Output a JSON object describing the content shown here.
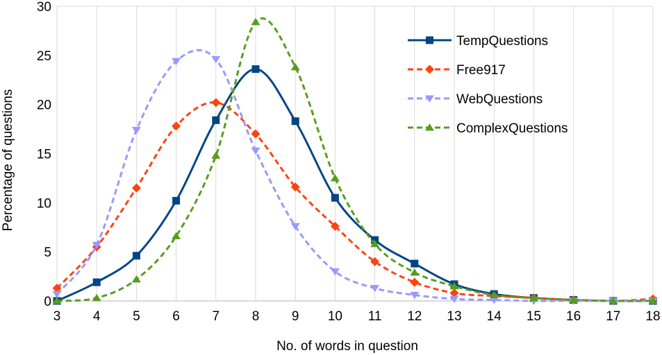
{
  "chart_data": {
    "type": "line",
    "title": "",
    "xlabel": "No. of words in question",
    "ylabel": "Percentage of questions",
    "x": [
      3,
      4,
      5,
      6,
      7,
      8,
      9,
      10,
      11,
      12,
      13,
      14,
      15,
      16,
      17,
      18
    ],
    "xlim": [
      3,
      18
    ],
    "ylim": [
      0,
      30
    ],
    "yticks": [
      0,
      5,
      10,
      15,
      20,
      25,
      30
    ],
    "grid": "vertical",
    "legend_position": "top-right",
    "series": [
      {
        "name": "TempQuestions",
        "color": "#004586",
        "marker": "square",
        "line_style": "solid",
        "values": [
          0,
          1.9,
          4.6,
          10.2,
          18.4,
          23.6,
          18.3,
          10.5,
          6.2,
          3.8,
          1.7,
          0.7,
          0.3,
          0.1,
          0,
          0
        ]
      },
      {
        "name": "Free917",
        "color": "#ff420e",
        "marker": "diamond",
        "line_style": "dashed",
        "values": [
          1.3,
          5.5,
          11.5,
          17.8,
          20.2,
          17.0,
          11.6,
          7.6,
          4.0,
          1.9,
          0.8,
          0.5,
          0.3,
          0.1,
          0,
          0.2
        ]
      },
      {
        "name": "WebQuestions",
        "color": "#9999ff",
        "marker": "triangle-down",
        "line_style": "dashed",
        "values": [
          0.7,
          5.7,
          17.4,
          24.4,
          24.6,
          15.3,
          7.6,
          3.0,
          1.3,
          0.6,
          0.2,
          0.1,
          0,
          0,
          0,
          0
        ]
      },
      {
        "name": "ComplexQuestions",
        "color": "#579d1c",
        "marker": "triangle-up",
        "line_style": "dashed",
        "values": [
          0,
          0.3,
          2.2,
          6.6,
          14.8,
          28.4,
          23.8,
          12.5,
          5.8,
          2.9,
          1.5,
          0.6,
          0.3,
          0.1,
          0,
          0
        ]
      }
    ]
  }
}
